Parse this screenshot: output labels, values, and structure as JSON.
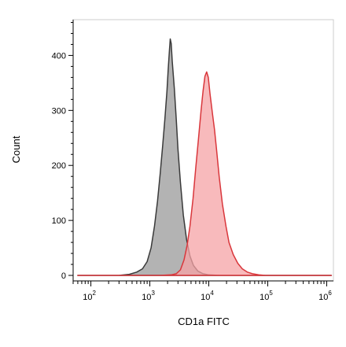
{
  "chart_data": {
    "type": "area",
    "xlabel": "CD1a FITC",
    "ylabel": "Count",
    "x_scale": "log",
    "xlim": [
      50,
      1300000
    ],
    "ylim": [
      -10,
      465
    ],
    "x_ticks": [
      {
        "value": 100,
        "base": "10",
        "exp": "2"
      },
      {
        "value": 1000,
        "base": "10",
        "exp": "3"
      },
      {
        "value": 10000,
        "base": "10",
        "exp": "4"
      },
      {
        "value": 100000,
        "base": "10",
        "exp": "5"
      },
      {
        "value": 1000000,
        "base": "10",
        "exp": "6"
      }
    ],
    "y_ticks": [
      0,
      100,
      200,
      300,
      400
    ],
    "grid": false,
    "series": [
      {
        "fill": "#b3b3b3",
        "stroke": "#3a3a3a",
        "points": [
          [
            60,
            0
          ],
          [
            300,
            0
          ],
          [
            450,
            2
          ],
          [
            600,
            6
          ],
          [
            750,
            12
          ],
          [
            900,
            25
          ],
          [
            1050,
            50
          ],
          [
            1200,
            90
          ],
          [
            1350,
            135
          ],
          [
            1500,
            185
          ],
          [
            1650,
            235
          ],
          [
            1800,
            285
          ],
          [
            1950,
            335
          ],
          [
            2050,
            375
          ],
          [
            2150,
            410
          ],
          [
            2220,
            430
          ],
          [
            2300,
            422
          ],
          [
            2400,
            390
          ],
          [
            2600,
            340
          ],
          [
            2800,
            285
          ],
          [
            3000,
            230
          ],
          [
            3300,
            170
          ],
          [
            3700,
            110
          ],
          [
            4200,
            65
          ],
          [
            4800,
            35
          ],
          [
            5500,
            18
          ],
          [
            6500,
            8
          ],
          [
            8000,
            3
          ],
          [
            10000,
            1
          ],
          [
            15000,
            0
          ],
          [
            1200000,
            0
          ]
        ]
      },
      {
        "fill": "#f5a3a6",
        "stroke": "#d9363b",
        "points": [
          [
            60,
            0
          ],
          [
            1500,
            0
          ],
          [
            2300,
            1
          ],
          [
            2800,
            3
          ],
          [
            3300,
            10
          ],
          [
            3800,
            28
          ],
          [
            4300,
            55
          ],
          [
            4800,
            90
          ],
          [
            5400,
            140
          ],
          [
            6000,
            195
          ],
          [
            6700,
            250
          ],
          [
            7400,
            300
          ],
          [
            8000,
            335
          ],
          [
            8600,
            362
          ],
          [
            9200,
            370
          ],
          [
            9800,
            360
          ],
          [
            10500,
            330
          ],
          [
            11500,
            295
          ],
          [
            12500,
            265
          ],
          [
            13500,
            230
          ],
          [
            15000,
            180
          ],
          [
            17000,
            130
          ],
          [
            19500,
            90
          ],
          [
            22000,
            60
          ],
          [
            26000,
            38
          ],
          [
            31000,
            22
          ],
          [
            37000,
            12
          ],
          [
            45000,
            6
          ],
          [
            55000,
            3
          ],
          [
            70000,
            1
          ],
          [
            90000,
            0
          ],
          [
            1200000,
            0
          ]
        ]
      }
    ]
  }
}
